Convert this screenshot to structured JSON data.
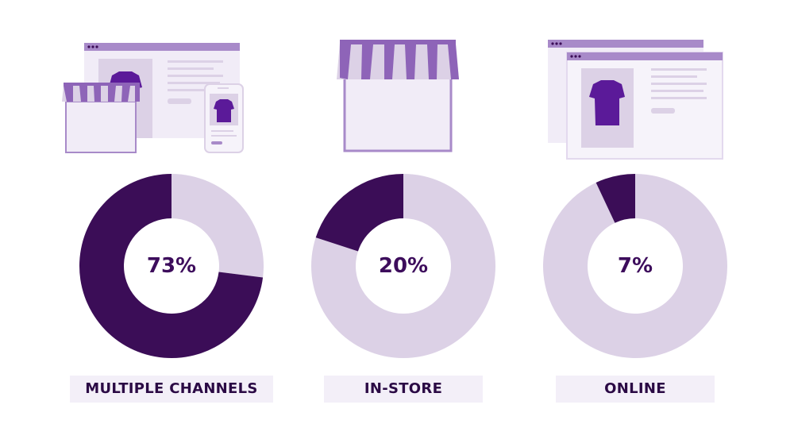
{
  "colors": {
    "dark": "#3b0d57",
    "light": "#dcd1e6",
    "accent": "#8e64b8",
    "shirt": "#5b1a99",
    "panel": "#f1ecf7",
    "panel_mid": "#e3d9ee",
    "label_bg": "#f3eff8"
  },
  "chart_data": [
    {
      "type": "pie",
      "style": "donut",
      "value": 73,
      "label": "MULTIPLE CHANNELS",
      "display": "73%",
      "illustration": "storefront-browser-and-phone"
    },
    {
      "type": "pie",
      "style": "donut",
      "value": 20,
      "label": "IN-STORE",
      "display": "20%",
      "illustration": "storefront"
    },
    {
      "type": "pie",
      "style": "donut",
      "value": 7,
      "label": "ONLINE",
      "display": "7%",
      "illustration": "browser-windows"
    }
  ]
}
